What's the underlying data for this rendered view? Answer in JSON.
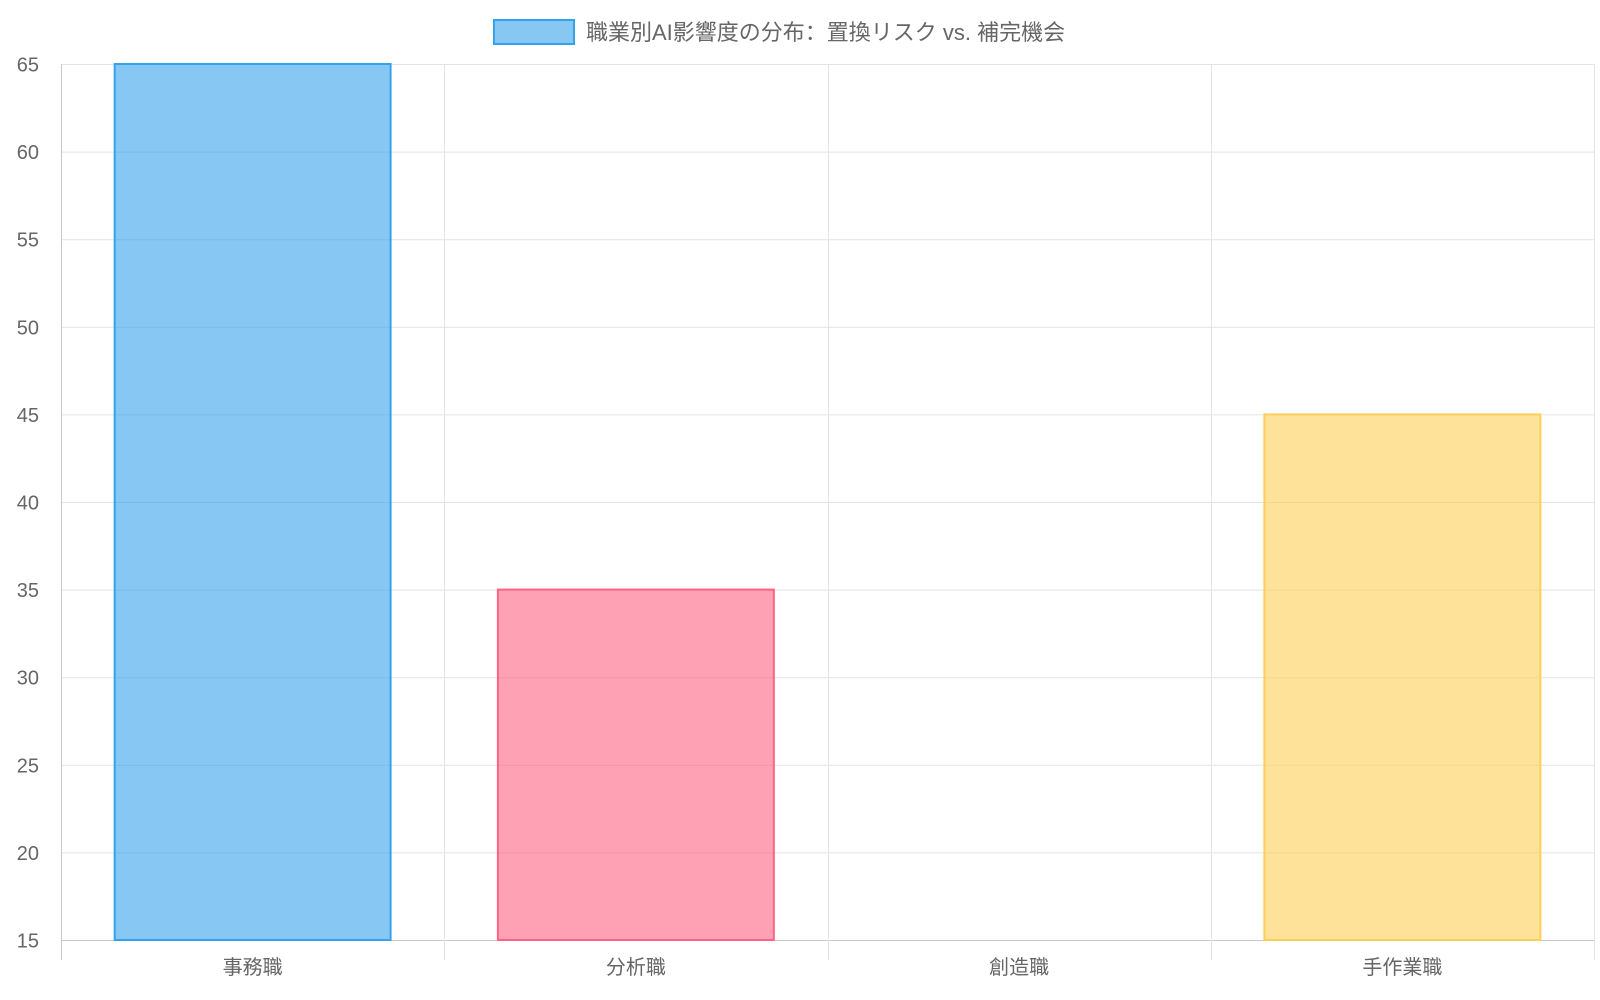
{
  "chart_data": {
    "type": "bar",
    "legend": {
      "label": "職業別AI影響度の分布：置換リスク vs. 補完機会",
      "position": "top"
    },
    "categories": [
      "事務職",
      "分析職",
      "創造職",
      "手作業職"
    ],
    "values": [
      65,
      35,
      15,
      45
    ],
    "colors": [
      {
        "fill": "rgba(54,162,235,0.6)",
        "border": "#36a2eb"
      },
      {
        "fill": "rgba(255,99,132,0.6)",
        "border": "#ff6384"
      },
      {
        "fill": "rgba(75,192,192,0.6)",
        "border": "#4bc0c0"
      },
      {
        "fill": "rgba(255,206,86,0.6)",
        "border": "#ffce56"
      }
    ],
    "ylim": [
      15,
      65
    ],
    "yticks": [
      15,
      20,
      25,
      30,
      35,
      40,
      45,
      50,
      55,
      60,
      65
    ],
    "grid": true,
    "xlabel": "",
    "ylabel": ""
  }
}
